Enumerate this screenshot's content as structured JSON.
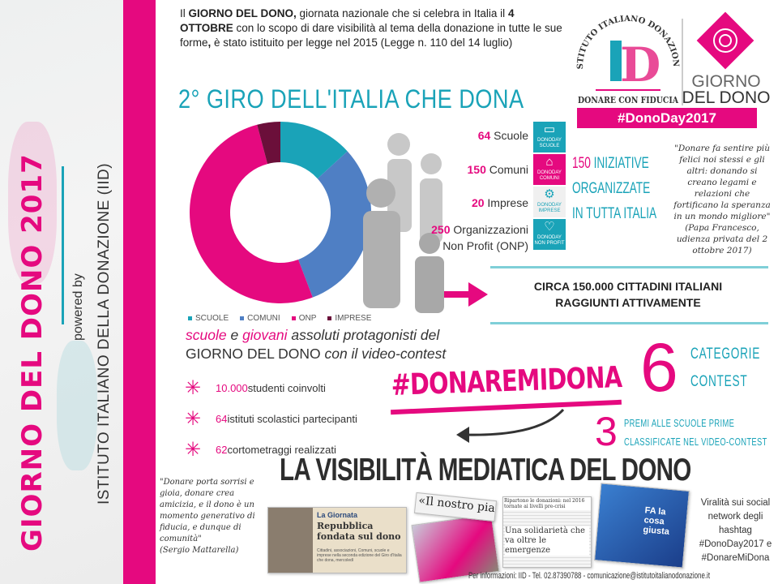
{
  "sidebar": {
    "title": "GIORNO DEL DONO 2017",
    "powered_by": "powered by",
    "institute": "ISTITUTO ITALIANO DELLA DONAZIONE (IID)"
  },
  "intro": {
    "p1": "Il ",
    "b1": "GIORNO DEL DONO,",
    "p2": " giornata nazionale che si celebra in Italia il ",
    "b2": "4 OTTOBRE",
    "p3": " con lo scopo di dare visibilità al tema della donazione in tutte le sue forme",
    "b3": ",",
    "p4": " è stato istituito per legge nel 2015 (Legge n. 110 del 14 luglio)"
  },
  "heading": "2° GIRO DELL'ITALIA CHE DONA",
  "logo": {
    "iid_arc": "ISTITUTO ITALIANO DONAZIONE",
    "iid_letters": "ID",
    "iid_tagline": "DONARE CON FIDUCIA",
    "gdd_line1": "GIORNO",
    "gdd_line2": "DEL DONO",
    "hashtag": "#DonoDay2017"
  },
  "chart_data": {
    "type": "pie",
    "donut": true,
    "categories": [
      "SCUOLE",
      "COMUNI",
      "ONP",
      "IMPRESE"
    ],
    "values": [
      64,
      150,
      250,
      20
    ],
    "colors": [
      "#1aa3b8",
      "#4f7fc4",
      "#e5097f",
      "#6b0f3a"
    ],
    "legend": "bottom"
  },
  "stats": [
    {
      "n": "64",
      "label": " Scuole",
      "tile": "SCUOLE",
      "icon": "book-icon"
    },
    {
      "n": "150",
      "label": " Comuni",
      "tile": "COMUNI",
      "icon": "building-icon"
    },
    {
      "n": "20",
      "label": " Imprese",
      "tile": "IMPRESE",
      "icon": "gears-icon"
    },
    {
      "n": "250",
      "label": " Organizzazioni",
      "label2": "Non Profit (ONP)",
      "tile": "NON PROFIT",
      "icon": "heart-icon"
    }
  ],
  "tile_prefix": "DONODAY",
  "iniziative": {
    "n": "150",
    "l1": " INIZIATIVE",
    "l2": "ORGANIZZATE",
    "l3": "IN TUTTA ITALIA"
  },
  "quote_pope": {
    "text": "\"Donare fa sentire più felici noi stessi e gli altri: donando si creano legami e relazioni che fortificano la speranza in un mondo migliore\"",
    "author": "(Papa Francesco, udienza privata del 2 ottobre 2017)"
  },
  "reach": {
    "l1": "CIRCA 150.000 CITTADINI ITALIANI",
    "l2": "RAGGIUNTI ATTIVAMENTE"
  },
  "contest": {
    "w1": "scuole",
    "w2": " e ",
    "w3": "giovani",
    "w4": " assoluti protagonisti del",
    "l2a": "GIORNO DEL DONO",
    "l2b": " con il video-contest"
  },
  "bullets": [
    {
      "n": "10.000",
      "t": " studenti coinvolti"
    },
    {
      "n": "64",
      "t": " istituti scolastici partecipanti"
    },
    {
      "n": "62",
      "t": " cortometraggi realizzati"
    }
  ],
  "hashtag_contest": "#DONAREMIDONA",
  "categories": {
    "n": "6",
    "l1": "CATEGORIE",
    "l2": "CONTEST"
  },
  "prizes": {
    "n": "3",
    "l1": "PREMI ALLE SCUOLE PRIME",
    "l2": "CLASSIFICATE NEL VIDEO-CONTEST"
  },
  "media_title": "LA VISIBILITÀ MEDIATICA DEL DONO",
  "quote_mattarella": {
    "text": "\"Donare porta sorrisi e gioia, donare crea amicizia, e il dono è un momento generativo di fiducia, e dunque di comunità\"",
    "author": "(Sergio Mattarella)"
  },
  "clips": {
    "c1_kicker": "La Giornata",
    "c1_head": "Repubblica fondata sul dono",
    "c1_body": "Cittadini, associazioni, Comuni, scuole e imprese nella seconda edizione del Giro d'Italia che dona, mercoledì",
    "c2_head": "«Il nostro pianeta dono ricevuto da con",
    "c3_top": "Ripartono le donazioni: nel 2016 tornate ai livelli pre-crisi",
    "c3_head": "Una solidarietà che va oltre le emergenze",
    "c4_head": "FA la cosa giusta"
  },
  "viral": {
    "l1": "Viralità sui social network degli hashtag",
    "t1": "#DonoDay2017",
    "and": " e ",
    "t2": "#DonareMiDona"
  },
  "footer": "Per informazioni: IID - Tel. 02.87390788 - comunicazione@istitutoitalianodonazione.it"
}
